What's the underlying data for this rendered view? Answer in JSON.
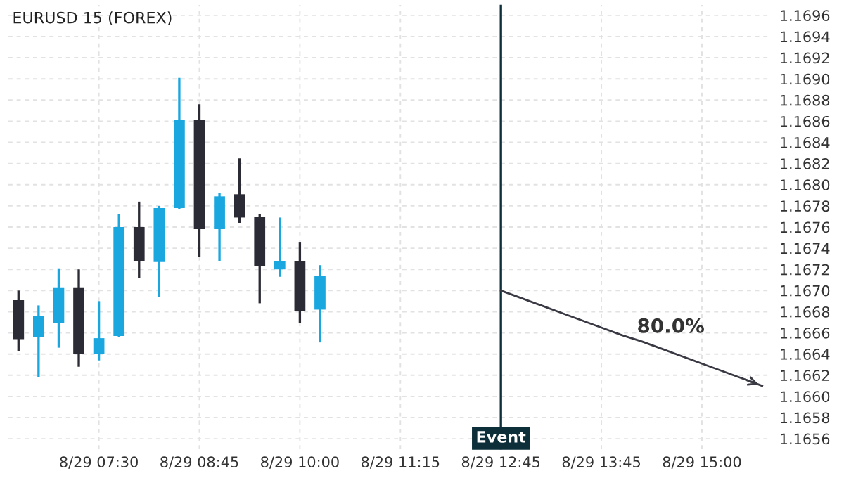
{
  "chart_data": {
    "type": "candlestick",
    "title": "EURUSD 15 (FOREX)",
    "categories": [
      null,
      null,
      null,
      null,
      "8/29 07:30",
      null,
      null,
      null,
      null,
      "8/29 08:45",
      null,
      null,
      null,
      null,
      "8/29 10:00",
      null,
      null,
      null,
      null,
      "8/29 11:15",
      null,
      null,
      null,
      null,
      "8/29 12:45",
      null,
      null,
      null,
      null,
      "8/29 13:45",
      null,
      null,
      null,
      null,
      "8/29 15:00",
      null,
      null,
      null
    ],
    "ohlc": [
      [
        1.16691,
        1.167,
        1.16643,
        1.16654
      ],
      [
        1.16656,
        1.16686,
        1.16618,
        1.16676
      ],
      [
        1.16669,
        1.16721,
        1.16646,
        1.16703
      ],
      [
        1.16703,
        1.1672,
        1.16628,
        1.1664
      ],
      [
        1.1664,
        1.1669,
        1.16634,
        1.16655
      ],
      [
        1.16657,
        1.16772,
        1.16656,
        1.1676
      ],
      [
        1.1676,
        1.16784,
        1.16712,
        1.16728
      ],
      [
        1.16727,
        1.1678,
        1.16694,
        1.16778
      ],
      [
        1.16778,
        1.16901,
        1.16777,
        1.16861
      ],
      [
        1.16861,
        1.16876,
        1.16732,
        1.16758
      ],
      [
        1.16758,
        1.16792,
        1.16728,
        1.16789
      ],
      [
        1.16791,
        1.16825,
        1.16764,
        1.16769
      ],
      [
        1.1677,
        1.16772,
        1.16688,
        1.16723
      ],
      [
        1.1672,
        1.16769,
        1.16713,
        1.16728
      ],
      [
        1.16728,
        1.16746,
        1.16669,
        1.16681
      ],
      [
        1.16682,
        1.16724,
        1.16651,
        1.16714
      ],
      null,
      null,
      null,
      null,
      null,
      null,
      null,
      null,
      null,
      null,
      null,
      null,
      null,
      null,
      null,
      null,
      null,
      null,
      null,
      null,
      null,
      null
    ],
    "colors": [
      "#2b2b35",
      "#1aa7e0",
      "#1aa7e0",
      "#2b2b35",
      "#1aa7e0",
      "#1aa7e0",
      "#2b2b35",
      "#1aa7e0",
      "#1aa7e0",
      "#2b2b35",
      "#1aa7e0",
      "#2b2b35",
      "#2b2b35",
      "#1aa7e0",
      "#2b2b35",
      "#1aa7e0",
      null,
      null,
      null,
      null,
      null,
      null,
      null,
      null,
      null,
      null,
      null,
      null,
      null,
      null,
      null,
      null,
      null,
      null,
      null,
      null,
      null,
      null
    ],
    "series": [
      {
        "type": "line",
        "values": [
          null,
          null,
          null,
          null,
          null,
          null,
          null,
          null,
          null,
          null,
          null,
          null,
          null,
          null,
          null,
          null,
          null,
          null,
          null,
          null,
          null,
          null,
          null,
          null,
          1.167,
          1.16693,
          1.16686,
          1.16679,
          1.16672,
          1.16665,
          1.16658,
          1.16652,
          1.16645,
          1.16638,
          1.16631,
          1.16624,
          1.16617,
          1.1661
        ],
        "color": "#3a3a44"
      }
    ],
    "annotations": [
      "80.0%"
    ],
    "ref_lines": [
      {
        "axis": "x",
        "value": "8/29 12:45",
        "label": "Event",
        "color": "#0d2f3a"
      }
    ],
    "ylim": [
      1.1655,
      1.1697
    ],
    "yticks": [
      1.1656,
      1.1658,
      {
        "value": 1.166,
        "label": "1.1660"
      },
      1.1662,
      1.1664,
      1.1666,
      1.1668,
      {
        "value": 1.167,
        "label": "1.1670"
      },
      1.1672,
      1.1674,
      1.1676,
      1.1678,
      {
        "value": 1.168,
        "label": "1.1680"
      },
      1.1682,
      1.1684,
      1.1686,
      1.1688,
      {
        "value": 1.169,
        "label": "1.1690"
      },
      1.1692,
      1.1694,
      1.1696
    ],
    "grid": true,
    "legend": false
  }
}
